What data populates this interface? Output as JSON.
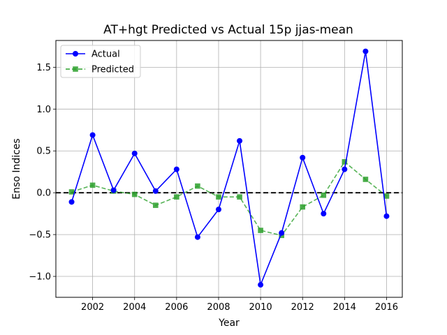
{
  "chart_data": {
    "type": "line",
    "title": "AT+hgt Predicted vs Actual 15p jjas-mean",
    "xlabel": "Year",
    "ylabel": "Enso Indices",
    "x": [
      2001,
      2002,
      2003,
      2004,
      2005,
      2006,
      2007,
      2008,
      2009,
      2010,
      2011,
      2012,
      2013,
      2014,
      2015,
      2016
    ],
    "xlim": [
      2000.25,
      2016.75
    ],
    "ylim": [
      -1.25,
      1.82
    ],
    "xticks": [
      2002,
      2004,
      2006,
      2008,
      2010,
      2012,
      2014,
      2016
    ],
    "xtick_labels": [
      "2002",
      "2004",
      "2006",
      "2008",
      "2010",
      "2012",
      "2014",
      "2016"
    ],
    "yticks": [
      -1.0,
      -0.5,
      0.0,
      0.5,
      1.0,
      1.5
    ],
    "ytick_labels": [
      "−1.0",
      "−0.5",
      "0.0",
      "0.5",
      "1.0",
      "1.5"
    ],
    "grid": true,
    "legend_position": "top-left",
    "reference_line": {
      "y": 0,
      "style": "dashed",
      "color": "#000000"
    },
    "series": [
      {
        "name": "Actual",
        "color": "#0000ff",
        "style": "solid",
        "marker": "circle",
        "values": [
          -0.11,
          0.69,
          0.03,
          0.47,
          0.02,
          0.28,
          -0.53,
          -0.2,
          0.62,
          -1.1,
          -0.48,
          0.42,
          -0.25,
          0.28,
          1.69,
          -0.28
        ]
      },
      {
        "name": "Predicted",
        "color": "#2ca02c",
        "style": "dashed",
        "marker": "square",
        "values": [
          0.01,
          0.09,
          0.02,
          -0.02,
          -0.15,
          -0.05,
          0.08,
          -0.05,
          -0.05,
          -0.45,
          -0.51,
          -0.17,
          -0.03,
          0.37,
          0.16,
          -0.04
        ]
      }
    ]
  }
}
